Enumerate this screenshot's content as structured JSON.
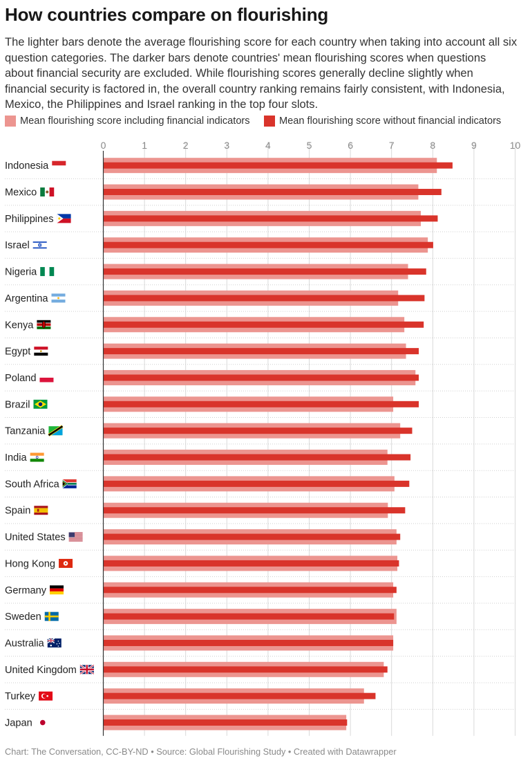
{
  "title": "How countries compare on flourishing",
  "subtitle": "The lighter bars denote the average flourishing score for each country when taking into account all six question categories. The darker bars denote countries' mean flourishing scores when questions about financial security are excluded. While flourishing scores generally decline slightly when financial security is factored in, the overall country ranking remains fairly consistent, with Indonesia, Mexico, the Philippines and Israel ranking in the top four slots.",
  "footer": "Chart: The Conversation, CC-BY-ND • Source: Global Flourishing Study • Created with Datawrapper",
  "colors": {
    "light": "#ec9590",
    "dark": "#d9342b",
    "grid": "#d9d9d9",
    "axis": "#333333"
  },
  "chart_data": {
    "type": "bar",
    "orientation": "horizontal",
    "xlim": [
      0,
      10
    ],
    "x_ticks": [
      0,
      1,
      2,
      3,
      4,
      5,
      6,
      7,
      8,
      9,
      10
    ],
    "grid": true,
    "legend_position": "top",
    "categories": [
      "Indonesia",
      "Mexico",
      "Philippines",
      "Israel",
      "Nigeria",
      "Argentina",
      "Kenya",
      "Egypt",
      "Poland",
      "Brazil",
      "Tanzania",
      "India",
      "South Africa",
      "Spain",
      "United States",
      "Hong Kong",
      "Germany",
      "Sweden",
      "Australia",
      "United Kingdom",
      "Turkey",
      "Japan"
    ],
    "flag_icons": [
      "indonesia-flag-icon",
      "mexico-flag-icon",
      "philippines-flag-icon",
      "israel-flag-icon",
      "nigeria-flag-icon",
      "argentina-flag-icon",
      "kenya-flag-icon",
      "egypt-flag-icon",
      "poland-flag-icon",
      "brazil-flag-icon",
      "tanzania-flag-icon",
      "india-flag-icon",
      "south-africa-flag-icon",
      "spain-flag-icon",
      "united-states-flag-icon",
      "hong-kong-flag-icon",
      "germany-flag-icon",
      "sweden-flag-icon",
      "australia-flag-icon",
      "united-kingdom-flag-icon",
      "turkey-flag-icon",
      "japan-flag-icon"
    ],
    "series": [
      {
        "name": "Mean flourishing score including financial indicators",
        "values": [
          8.1,
          7.65,
          7.71,
          7.88,
          7.4,
          7.16,
          7.31,
          7.35,
          7.58,
          7.04,
          7.21,
          6.9,
          7.07,
          6.91,
          7.12,
          7.14,
          7.04,
          7.12,
          7.04,
          6.81,
          6.33,
          5.9
        ]
      },
      {
        "name": "Mean flourishing score without financial indicators",
        "values": [
          8.48,
          8.21,
          8.12,
          8.01,
          7.84,
          7.8,
          7.78,
          7.66,
          7.66,
          7.66,
          7.5,
          7.46,
          7.43,
          7.33,
          7.21,
          7.18,
          7.12,
          7.06,
          7.04,
          6.9,
          6.61,
          5.92
        ]
      }
    ]
  }
}
